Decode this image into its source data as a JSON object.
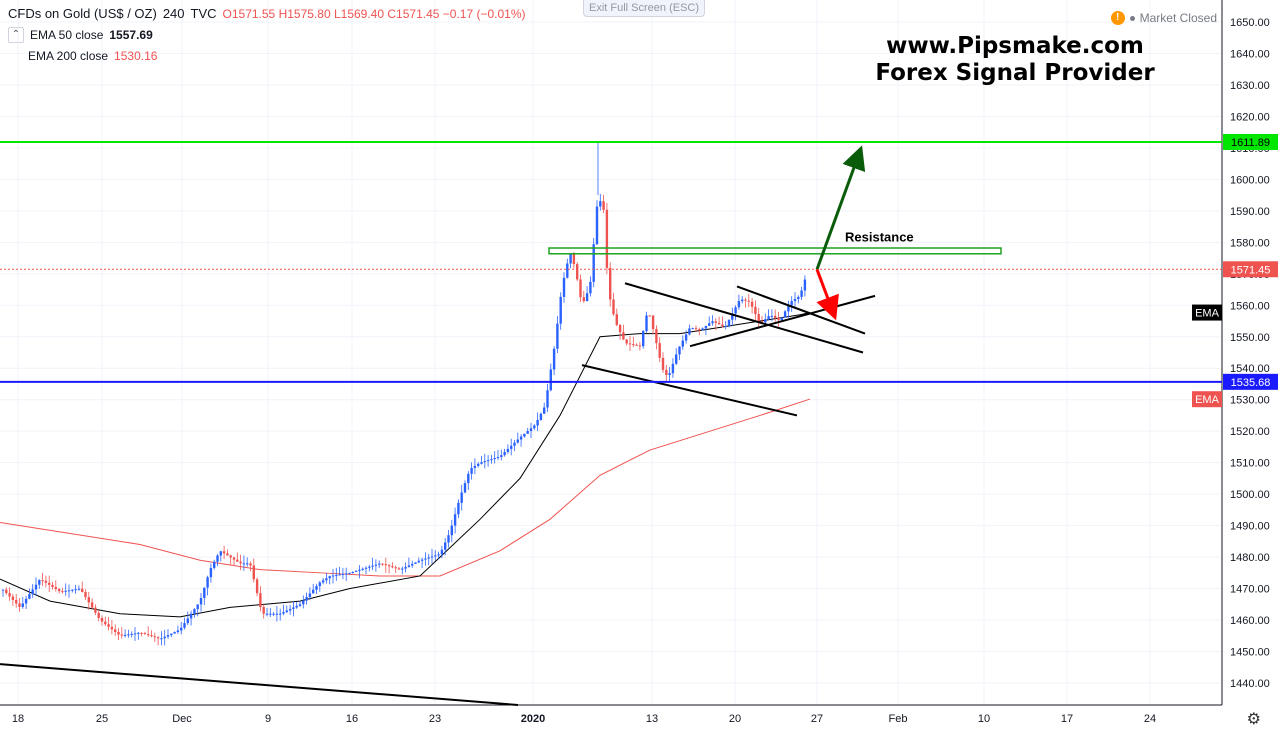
{
  "header": {
    "symbol": "CFDs on Gold (US$ / OZ)",
    "interval": "240",
    "source": "TVC",
    "ohlc": {
      "o": "O1571.55",
      "h": "H1575.80",
      "l": "L1569.40",
      "c": "C1571.45",
      "chg": "−0.17 (−0.01%)"
    },
    "ema50_label": "EMA 50 close",
    "ema50_value": "1557.69",
    "ema200_label": "EMA 200 close",
    "ema200_value": "1530.16",
    "exit_fullscreen": "Exit Full Screen (ESC)",
    "market_status": "Market Closed"
  },
  "branding": {
    "line1": "www.Pipsmake.com",
    "line2": "Forex Signal Provider"
  },
  "colors": {
    "up": "#2962ff",
    "down": "#ef5350",
    "ema50": "#000000",
    "ema200": "#ef5350",
    "support": "#1a1aff",
    "resistance": "#00e600",
    "bull_arrow": "#0a5c0a",
    "bear_arrow": "#ff0000"
  },
  "chart_data": {
    "type": "line",
    "title": "",
    "xlabel": "",
    "ylabel": "",
    "ylim": [
      1433,
      1657
    ],
    "x_ticks": [
      "18",
      "25",
      "Dec",
      "9",
      "16",
      "23",
      "2020",
      "13",
      "20",
      "27",
      "Feb",
      "10",
      "17",
      "24"
    ],
    "y_ticks": [
      1440,
      1450,
      1460,
      1470,
      1480,
      1490,
      1500,
      1510,
      1520,
      1530,
      1540,
      1550,
      1560,
      1570,
      1580,
      1590,
      1600,
      1610,
      1620,
      1630,
      1640,
      1650
    ],
    "price_labels": [
      {
        "name": "resistance-level",
        "value": "1611.89"
      },
      {
        "name": "last-price",
        "value": "1571.45"
      },
      {
        "name": "support-level",
        "value": "1535.68"
      },
      {
        "name": "ema50-tag",
        "value": "EMA"
      },
      {
        "name": "ema200-tag",
        "value": "EMA"
      }
    ],
    "annotation": "Resistance",
    "series": [
      {
        "name": "EMA 50 close",
        "points": [
          [
            0,
            1473
          ],
          [
            50,
            1466
          ],
          [
            120,
            1462
          ],
          [
            180,
            1461
          ],
          [
            230,
            1464
          ],
          [
            300,
            1466
          ],
          [
            350,
            1470
          ],
          [
            420,
            1474
          ],
          [
            440,
            1480
          ],
          [
            480,
            1492
          ],
          [
            520,
            1505
          ],
          [
            560,
            1525
          ],
          [
            600,
            1550
          ],
          [
            640,
            1551
          ],
          [
            680,
            1551
          ],
          [
            720,
            1553
          ],
          [
            760,
            1555
          ],
          [
            800,
            1557
          ],
          [
            810,
            1557.7
          ]
        ]
      },
      {
        "name": "EMA 200 close",
        "points": [
          [
            0,
            1491
          ],
          [
            60,
            1488
          ],
          [
            140,
            1484
          ],
          [
            200,
            1479
          ],
          [
            260,
            1476
          ],
          [
            320,
            1475
          ],
          [
            380,
            1474
          ],
          [
            440,
            1474
          ],
          [
            500,
            1482
          ],
          [
            550,
            1492
          ],
          [
            600,
            1506
          ],
          [
            650,
            1514
          ],
          [
            700,
            1519
          ],
          [
            760,
            1525
          ],
          [
            810,
            1530.2
          ]
        ]
      },
      {
        "name": "price",
        "points": [
          [
            2,
            1470
          ],
          [
            20,
            1464
          ],
          [
            40,
            1473
          ],
          [
            60,
            1469
          ],
          [
            80,
            1470
          ],
          [
            100,
            1460
          ],
          [
            120,
            1455
          ],
          [
            140,
            1456
          ],
          [
            160,
            1454
          ],
          [
            180,
            1457
          ],
          [
            200,
            1466
          ],
          [
            210,
            1476
          ],
          [
            220,
            1482
          ],
          [
            240,
            1478
          ],
          [
            250,
            1478
          ],
          [
            262,
            1462
          ],
          [
            280,
            1462
          ],
          [
            300,
            1465
          ],
          [
            320,
            1472
          ],
          [
            330,
            1474
          ],
          [
            350,
            1475
          ],
          [
            380,
            1478
          ],
          [
            400,
            1476
          ],
          [
            420,
            1479
          ],
          [
            440,
            1481
          ],
          [
            450,
            1488
          ],
          [
            460,
            1499
          ],
          [
            470,
            1508
          ],
          [
            480,
            1510
          ],
          [
            500,
            1512
          ],
          [
            520,
            1518
          ],
          [
            535,
            1522
          ],
          [
            545,
            1528
          ],
          [
            555,
            1548
          ],
          [
            562,
            1566
          ],
          [
            570,
            1577
          ],
          [
            575,
            1572
          ],
          [
            582,
            1560
          ],
          [
            590,
            1566
          ],
          [
            598,
            1595
          ],
          [
            604,
            1590
          ],
          [
            608,
            1565
          ],
          [
            615,
            1555
          ],
          [
            625,
            1548
          ],
          [
            640,
            1547
          ],
          [
            648,
            1559
          ],
          [
            655,
            1550
          ],
          [
            662,
            1540
          ],
          [
            668,
            1537
          ],
          [
            678,
            1546
          ],
          [
            690,
            1553
          ],
          [
            700,
            1552
          ],
          [
            712,
            1555
          ],
          [
            725,
            1553
          ],
          [
            740,
            1562
          ],
          [
            750,
            1561
          ],
          [
            760,
            1554
          ],
          [
            770,
            1557
          ],
          [
            780,
            1555
          ],
          [
            790,
            1561
          ],
          [
            800,
            1563
          ],
          [
            808,
            1571.45
          ]
        ]
      }
    ],
    "trendlines": [
      [
        [
          0,
          1446
        ],
        [
          518,
          1433
        ]
      ],
      [
        [
          582,
          1541
        ],
        [
          797,
          1525
        ]
      ],
      [
        [
          625,
          1567
        ],
        [
          863,
          1545
        ]
      ],
      [
        [
          690,
          1547
        ],
        [
          875,
          1563
        ]
      ],
      [
        [
          737,
          1566
        ],
        [
          865,
          1551
        ]
      ]
    ]
  }
}
